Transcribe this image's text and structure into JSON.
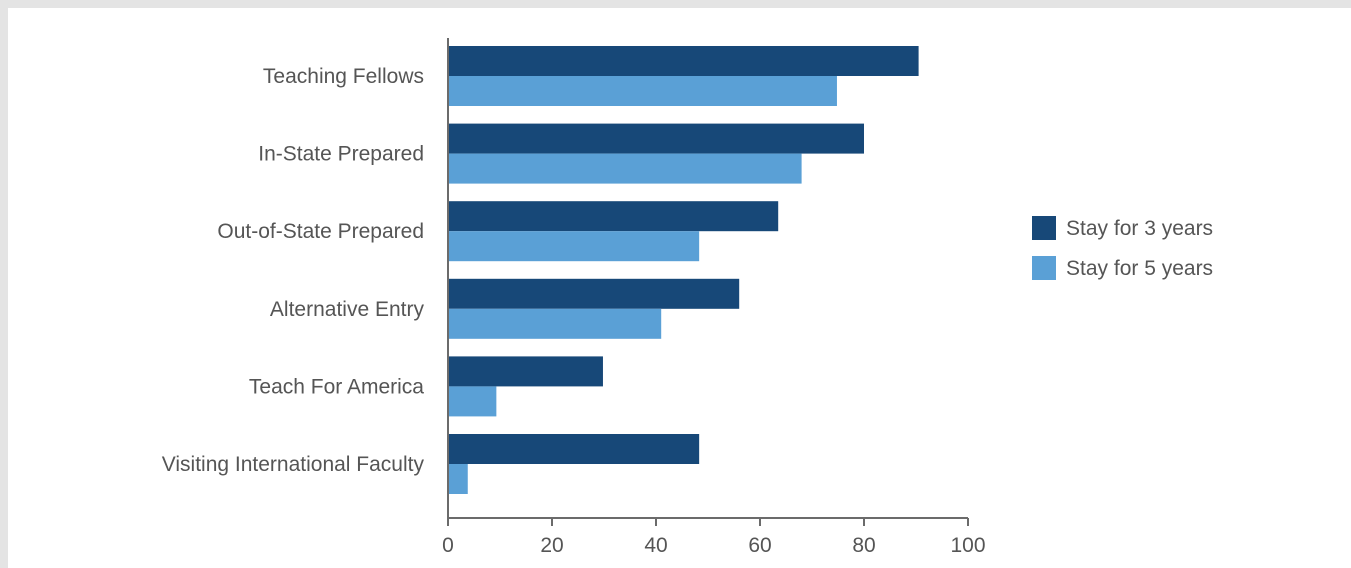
{
  "chart_data": {
    "type": "bar",
    "orientation": "horizontal",
    "categories": [
      "Teaching Fellows",
      "In-State Prepared",
      "Out-of-State Prepared",
      "Alternative Entry",
      "Teach For America",
      "Visiting International Faculty"
    ],
    "series": [
      {
        "name": "Stay for 3 years",
        "color": "#174878",
        "values": [
          90.5,
          80,
          63.5,
          56,
          29.8,
          48.3
        ]
      },
      {
        "name": "Stay for 5 years",
        "color": "#5aa0d6",
        "values": [
          74.8,
          68,
          48.3,
          41,
          9.3,
          3.8
        ]
      }
    ],
    "xlim": [
      0,
      100
    ],
    "xticks": [
      0,
      20,
      40,
      60,
      80,
      100
    ],
    "xtick_labels": [
      "0",
      "20",
      "40",
      "60",
      "80",
      "100"
    ],
    "title": "",
    "xlabel": "",
    "ylabel": "",
    "grid": false,
    "legend_position": "right"
  }
}
